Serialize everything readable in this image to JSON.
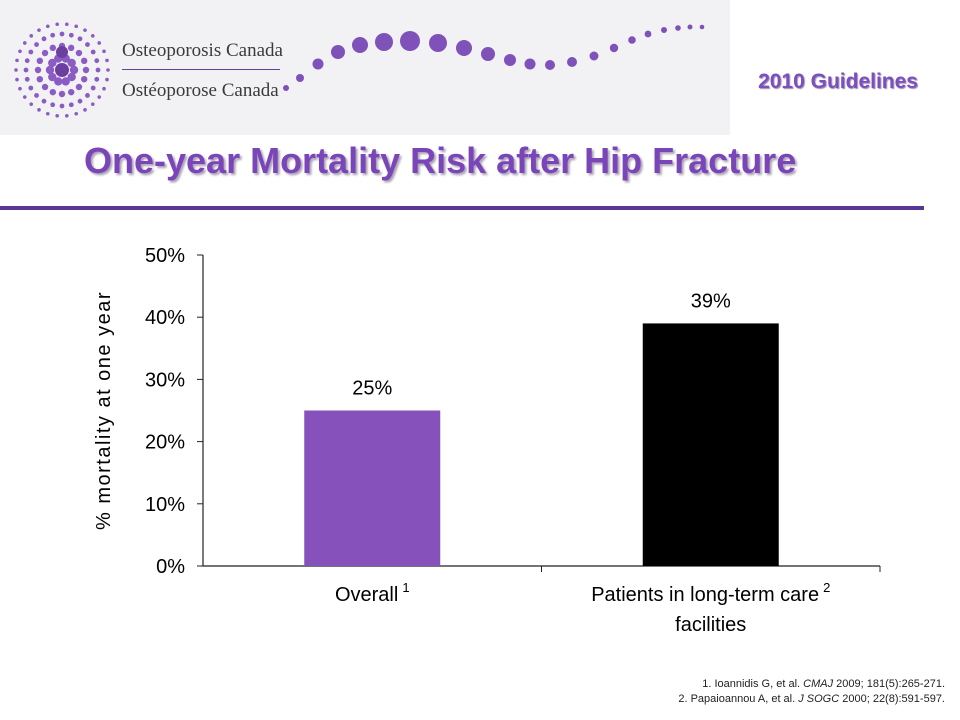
{
  "header": {
    "org_name_en": "Osteoporosis Canada",
    "org_name_fr": "Ostéoporose Canada",
    "guidelines_label": "2010 Guidelines",
    "colors": {
      "brand_purple": "#7a45b9",
      "rule": "#5b3594"
    }
  },
  "slide": {
    "title": "One-year Mortality Risk after Hip Fracture"
  },
  "chart_data": {
    "type": "bar",
    "title": "",
    "xlabel": "",
    "ylabel": "% mortality at one year",
    "ylim": [
      0,
      50
    ],
    "yticks": [
      0,
      10,
      20,
      30,
      40,
      50
    ],
    "ytick_labels": [
      "0%",
      "10%",
      "20%",
      "30%",
      "40%",
      "50%"
    ],
    "categories": [
      "Overall",
      "Patients in long-term care facilities"
    ],
    "category_lines": [
      [
        "Overall"
      ],
      [
        "Patients in long-term care",
        "facilities"
      ]
    ],
    "category_superscripts": [
      "1",
      "2"
    ],
    "values": [
      25,
      39
    ],
    "data_labels": [
      "25%",
      "39%"
    ],
    "bar_colors": [
      "#8651bb",
      "#000000"
    ],
    "grid": false,
    "legend": "none"
  },
  "references": {
    "ref1": {
      "pre": "1. Ioannidis G, et al. ",
      "journal": "CMAJ",
      "post": " 2009; 181(5):265-271."
    },
    "ref2": {
      "pre": "2. Papaioannou A, et al. ",
      "journal": "J SOGC",
      "post": " 2000; 22(8):591-597."
    }
  }
}
